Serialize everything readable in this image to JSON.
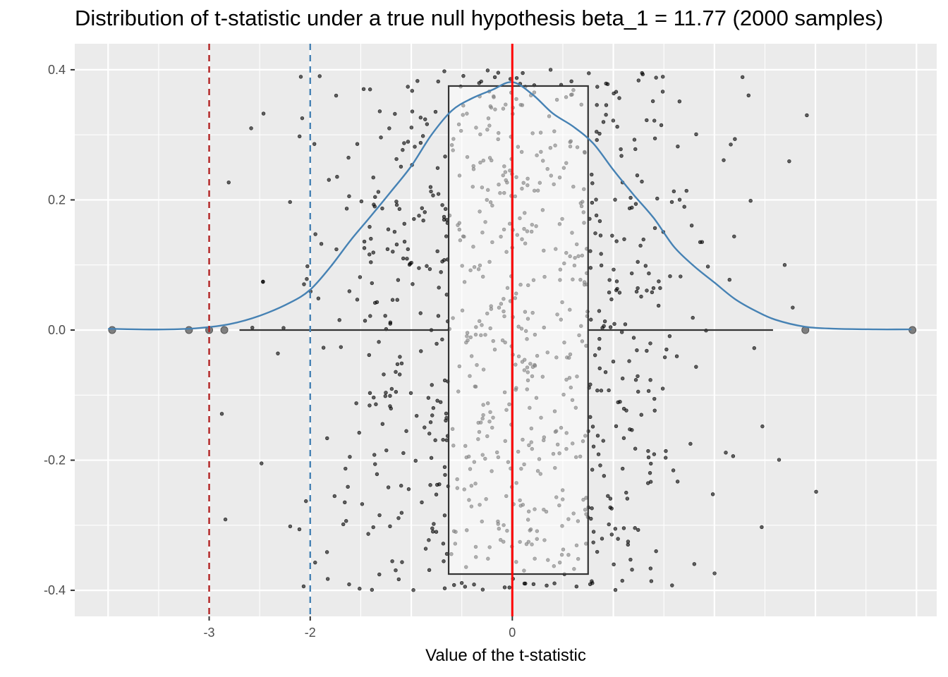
{
  "title": "Distribution of t-statistic under a true null hypothesis beta_1 = 11.77 (2000 samples)",
  "xlabel": "Value of the t-statistic",
  "colors": {
    "panel": "#EBEBEB",
    "grid": "#FFFFFF",
    "density": "#4682B4",
    "critical_line": "#B22222",
    "reference_line": "#4682B4",
    "zero_line": "#FF0000",
    "points": "#000000",
    "boxplot": "#333333"
  },
  "chart_data": {
    "type": "scatter",
    "xlim": [
      -4.33,
      4.2
    ],
    "ylim": [
      -0.44,
      0.44
    ],
    "x_ticks": [
      {
        "value": -3,
        "label": "-3"
      },
      {
        "value": -2,
        "label": "-2"
      },
      {
        "value": 0,
        "label": "0"
      }
    ],
    "y_ticks": [
      {
        "value": 0.4,
        "label": "0.4"
      },
      {
        "value": 0.2,
        "label": "0.2"
      },
      {
        "value": 0.0,
        "label": "0.0"
      },
      {
        "value": -0.2,
        "label": "-0.2"
      },
      {
        "value": -0.4,
        "label": "-0.4"
      }
    ],
    "grid": true,
    "vertical_lines": [
      {
        "x": -3,
        "style": "dashed",
        "color": "#B22222"
      },
      {
        "x": -2,
        "style": "dashed",
        "color": "#4682B4"
      },
      {
        "x": 0,
        "style": "solid",
        "color": "#FF0000"
      }
    ],
    "density_curve": {
      "x": [
        -4.0,
        -3.7,
        -3.4,
        -3.1,
        -2.8,
        -2.5,
        -2.2,
        -2.0,
        -1.8,
        -1.6,
        -1.4,
        -1.2,
        -1.0,
        -0.8,
        -0.6,
        -0.4,
        -0.2,
        0.0,
        0.2,
        0.4,
        0.6,
        0.8,
        1.0,
        1.2,
        1.4,
        1.6,
        1.8,
        2.0,
        2.2,
        2.4,
        2.6,
        2.9,
        3.2,
        3.6,
        3.95
      ],
      "y": [
        0.002,
        0.001,
        0.001,
        0.003,
        0.009,
        0.022,
        0.042,
        0.062,
        0.097,
        0.138,
        0.175,
        0.213,
        0.252,
        0.3,
        0.337,
        0.356,
        0.369,
        0.381,
        0.362,
        0.333,
        0.313,
        0.287,
        0.246,
        0.208,
        0.172,
        0.128,
        0.098,
        0.073,
        0.048,
        0.03,
        0.016,
        0.005,
        0.002,
        0.001,
        0.001
      ]
    },
    "boxplot": {
      "q1": -0.63,
      "median": 0.0,
      "q3": 0.75,
      "whisker_low": -2.7,
      "whisker_high": 2.58,
      "half_height": 0.375,
      "outliers": [
        -3.96,
        -3.2,
        -3.0,
        -2.85,
        2.9,
        3.96
      ]
    },
    "jitter_points": {
      "count": 900,
      "y_range": [
        -0.4,
        0.4
      ]
    }
  }
}
